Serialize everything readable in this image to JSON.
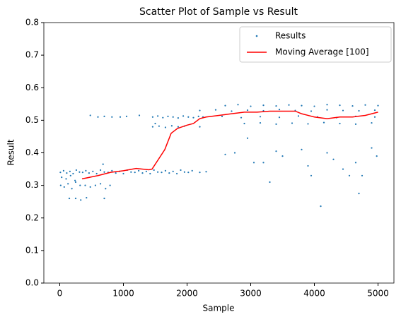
{
  "chart_data": {
    "type": "scatter",
    "title": "Scatter Plot of Sample vs Result",
    "xlabel": "Sample",
    "ylabel": "Result",
    "xlim": [
      -250,
      5250
    ],
    "ylim": [
      0,
      0.8
    ],
    "xticks": [
      0,
      1000,
      2000,
      3000,
      4000,
      5000
    ],
    "yticks": [
      {
        "value": 0,
        "label": "0.0"
      },
      0.1,
      0.2,
      0.3,
      0.4,
      0.5,
      0.6,
      0.7,
      0.8
    ],
    "legend": "upper right",
    "series": [
      {
        "name": "Results",
        "color": "#1f77b4",
        "kind": "points",
        "x": [
          10,
          60,
          110,
          160,
          210,
          260,
          310,
          360,
          410,
          460,
          520,
          580,
          640,
          700,
          760,
          820,
          880,
          940,
          1000,
          1060,
          1120,
          1180,
          1240,
          1300,
          1360,
          1420,
          1480,
          1540,
          1600,
          1660,
          1720,
          1780,
          1840,
          1900,
          1960,
          2020,
          2080,
          15,
          70,
          130,
          190,
          250,
          320,
          400,
          480,
          560,
          640,
          720,
          790,
          30,
          100,
          170,
          240,
          150,
          250,
          330,
          420,
          700,
          680,
          2200,
          2300,
          480,
          600,
          700,
          820,
          950,
          1050,
          1250,
          1460,
          1540,
          1620,
          1700,
          1780,
          1860,
          1940,
          2020,
          2100,
          2180,
          1460,
          1560,
          1660,
          1760,
          1860,
          1960,
          2600,
          2800,
          3000,
          3200,
          3400,
          3600,
          3800,
          4000,
          4200,
          4400,
          4600,
          4800,
          5000,
          2200,
          2450,
          2700,
          2950,
          3200,
          3450,
          3700,
          3950,
          4200,
          4450,
          4700,
          4950,
          2250,
          2550,
          2850,
          3150,
          3450,
          3750,
          4050,
          4350,
          4650,
          4950,
          2900,
          3150,
          3400,
          3650,
          3900,
          4150,
          4400,
          4650,
          4900,
          2600,
          2750,
          2950,
          3050,
          3200,
          3300,
          3400,
          3500,
          3800,
          3900,
          3950,
          4100,
          4200,
          4300,
          4450,
          4550,
          4650,
          4700,
          4750,
          4900,
          4980,
          2200,
          1500
        ],
        "y": [
          0.34,
          0.345,
          0.338,
          0.343,
          0.336,
          0.347,
          0.341,
          0.34,
          0.345,
          0.338,
          0.343,
          0.336,
          0.347,
          0.341,
          0.34,
          0.345,
          0.338,
          0.343,
          0.336,
          0.347,
          0.341,
          0.34,
          0.345,
          0.338,
          0.343,
          0.336,
          0.347,
          0.341,
          0.34,
          0.345,
          0.338,
          0.343,
          0.336,
          0.347,
          0.341,
          0.34,
          0.345,
          0.3,
          0.295,
          0.305,
          0.29,
          0.31,
          0.3,
          0.3,
          0.295,
          0.3,
          0.305,
          0.29,
          0.3,
          0.325,
          0.32,
          0.33,
          0.315,
          0.26,
          0.26,
          0.255,
          0.262,
          0.26,
          0.365,
          0.34,
          0.342,
          0.515,
          0.51,
          0.512,
          0.51,
          0.51,
          0.512,
          0.515,
          0.51,
          0.513,
          0.508,
          0.512,
          0.51,
          0.507,
          0.513,
          0.51,
          0.508,
          0.512,
          0.48,
          0.482,
          0.478,
          0.483,
          0.48,
          0.482,
          0.545,
          0.548,
          0.543,
          0.546,
          0.544,
          0.547,
          0.545,
          0.543,
          0.548,
          0.546,
          0.544,
          0.547,
          0.545,
          0.53,
          0.532,
          0.528,
          0.531,
          0.529,
          0.533,
          0.53,
          0.528,
          0.532,
          0.53,
          0.529,
          0.531,
          0.51,
          0.512,
          0.508,
          0.511,
          0.509,
          0.513,
          0.51,
          0.508,
          0.512,
          0.51,
          0.49,
          0.492,
          0.488,
          0.491,
          0.489,
          0.493,
          0.49,
          0.488,
          0.492,
          0.395,
          0.4,
          0.445,
          0.37,
          0.37,
          0.31,
          0.405,
          0.39,
          0.41,
          0.36,
          0.33,
          0.236,
          0.4,
          0.38,
          0.35,
          0.33,
          0.37,
          0.275,
          0.33,
          0.415,
          0.39,
          0.48,
          0.49
        ]
      },
      {
        "name": "Moving Average [100]",
        "color": "#ff0000",
        "kind": "line",
        "x": [
          350,
          600,
          800,
          1000,
          1200,
          1400,
          1450,
          1550,
          1650,
          1750,
          1850,
          2000,
          2100,
          2200,
          2300,
          2500,
          2700,
          2900,
          3100,
          3300,
          3500,
          3700,
          3800,
          3900,
          4000,
          4200,
          4400,
          4600,
          4800,
          5000
        ],
        "y": [
          0.32,
          0.33,
          0.34,
          0.345,
          0.352,
          0.348,
          0.35,
          0.38,
          0.41,
          0.46,
          0.475,
          0.485,
          0.49,
          0.505,
          0.51,
          0.515,
          0.52,
          0.525,
          0.525,
          0.528,
          0.528,
          0.528,
          0.52,
          0.515,
          0.51,
          0.505,
          0.51,
          0.51,
          0.515,
          0.525
        ]
      }
    ]
  }
}
